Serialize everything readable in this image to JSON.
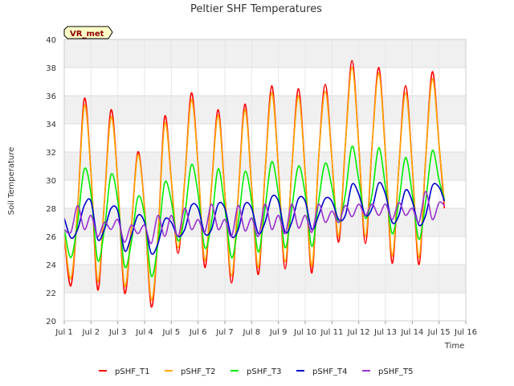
{
  "chart_data": {
    "type": "line",
    "title": "Peltier SHF Temperatures",
    "xlabel": "Time",
    "ylabel": "Soil Temperature",
    "badge": "VR_met",
    "xlim": [
      1,
      16
    ],
    "ylim": [
      20,
      40
    ],
    "x_ticks": [
      {
        "value": 1,
        "label": "Jul 1"
      },
      {
        "value": 2,
        "label": "Jul 2"
      },
      {
        "value": 3,
        "label": "Jul 3"
      },
      {
        "value": 4,
        "label": "Jul 4"
      },
      {
        "value": 5,
        "label": "Jul 5"
      },
      {
        "value": 6,
        "label": "Jul 6"
      },
      {
        "value": 7,
        "label": "Jul 7"
      },
      {
        "value": 8,
        "label": "Jul 8"
      },
      {
        "value": 9,
        "label": "Jul 9"
      },
      {
        "value": 10,
        "label": "Jul 10"
      },
      {
        "value": 11,
        "label": "Jul 11"
      },
      {
        "value": 12,
        "label": "Jul 12"
      },
      {
        "value": 13,
        "label": "Jul 13"
      },
      {
        "value": 14,
        "label": "Jul 14"
      },
      {
        "value": 15,
        "label": "Jul 15"
      },
      {
        "value": 16,
        "label": "Jul 16"
      }
    ],
    "y_ticks": [
      20,
      22,
      24,
      26,
      28,
      30,
      32,
      34,
      36,
      38,
      40
    ],
    "grid": true,
    "legend_position": "bottom",
    "series": [
      {
        "name": "pSHF_T1",
        "color": "#ff0000",
        "x": [
          1.0,
          1.25,
          1.5,
          1.75,
          2.0,
          2.25,
          2.5,
          2.75,
          3.0,
          3.25,
          3.5,
          3.75,
          4.0,
          4.25,
          4.5,
          4.75,
          5.0,
          5.25,
          5.5,
          5.75,
          6.0,
          6.25,
          6.5,
          6.75,
          7.0,
          7.25,
          7.5,
          7.75,
          8.0,
          8.25,
          8.5,
          8.75,
          9.0,
          9.25,
          9.5,
          9.75,
          10.0,
          10.25,
          10.5,
          10.75,
          11.0,
          11.25,
          11.5,
          11.75,
          12.0,
          12.25,
          12.5,
          12.75,
          13.0,
          13.25,
          13.5,
          13.75,
          14.0,
          14.25,
          14.5,
          14.75,
          15.0,
          15.2
        ],
        "y": [
          26.0,
          22.5,
          28.0,
          35.8,
          30.5,
          22.2,
          28.5,
          35.0,
          29.8,
          22.0,
          26.5,
          32.0,
          28.0,
          21.0,
          26.0,
          34.5,
          30.0,
          24.8,
          30.0,
          36.2,
          31.0,
          23.8,
          29.5,
          35.0,
          29.0,
          22.7,
          29.0,
          35.4,
          29.5,
          23.3,
          30.5,
          36.7,
          30.8,
          23.7,
          30.8,
          36.5,
          30.5,
          23.4,
          31.5,
          36.8,
          31.5,
          25.6,
          32.5,
          38.5,
          32.5,
          25.5,
          32.5,
          38.0,
          31.8,
          24.1,
          31.0,
          36.7,
          31.0,
          24.0,
          31.5,
          37.7,
          32.5,
          28.0
        ]
      },
      {
        "name": "pSHF_T2",
        "color": "#ffa500",
        "x": [
          1.0,
          1.25,
          1.5,
          1.75,
          2.0,
          2.25,
          2.5,
          2.75,
          3.0,
          3.25,
          3.5,
          3.75,
          4.0,
          4.25,
          4.5,
          4.75,
          5.0,
          5.25,
          5.5,
          5.75,
          6.0,
          6.25,
          6.5,
          6.75,
          7.0,
          7.25,
          7.5,
          7.75,
          8.0,
          8.25,
          8.5,
          8.75,
          9.0,
          9.25,
          9.5,
          9.75,
          10.0,
          10.25,
          10.5,
          10.75,
          11.0,
          11.25,
          11.5,
          11.75,
          12.0,
          12.25,
          12.5,
          12.75,
          13.0,
          13.25,
          13.5,
          13.75,
          14.0,
          14.25,
          14.5,
          14.75,
          15.0,
          15.2
        ],
        "y": [
          26.2,
          23.0,
          28.0,
          35.3,
          30.5,
          22.8,
          28.5,
          34.5,
          29.8,
          22.5,
          26.5,
          31.8,
          28.0,
          21.5,
          26.0,
          34.0,
          30.0,
          25.2,
          30.0,
          35.7,
          31.0,
          24.3,
          29.5,
          34.6,
          29.0,
          23.2,
          29.0,
          35.0,
          29.5,
          23.8,
          30.5,
          36.2,
          30.8,
          24.2,
          30.8,
          36.0,
          30.5,
          23.9,
          31.5,
          36.3,
          31.5,
          26.0,
          32.5,
          38.0,
          32.5,
          26.0,
          32.5,
          37.6,
          31.8,
          24.6,
          31.0,
          36.2,
          31.0,
          24.5,
          31.5,
          37.2,
          32.5,
          28.4
        ]
      },
      {
        "name": "pSHF_T3",
        "color": "#00ee00",
        "x": [
          1.0,
          1.25,
          1.5,
          1.75,
          2.0,
          2.25,
          2.5,
          2.75,
          3.0,
          3.25,
          3.5,
          3.75,
          4.0,
          4.25,
          4.5,
          4.75,
          5.0,
          5.25,
          5.5,
          5.75,
          6.0,
          6.25,
          6.5,
          6.75,
          7.0,
          7.25,
          7.5,
          7.75,
          8.0,
          8.25,
          8.5,
          8.75,
          9.0,
          9.25,
          9.5,
          9.75,
          10.0,
          10.25,
          10.5,
          10.75,
          11.0,
          11.25,
          11.5,
          11.75,
          12.0,
          12.25,
          12.5,
          12.75,
          13.0,
          13.25,
          13.5,
          13.75,
          14.0,
          14.25,
          14.5,
          14.75,
          15.0,
          15.2
        ],
        "y": [
          26.5,
          24.5,
          27.0,
          30.8,
          29.0,
          24.3,
          26.5,
          30.4,
          28.5,
          23.9,
          25.5,
          28.8,
          27.5,
          23.2,
          25.5,
          29.8,
          28.5,
          25.7,
          27.5,
          31.1,
          29.0,
          25.2,
          27.0,
          30.8,
          28.0,
          24.5,
          27.0,
          30.6,
          28.5,
          24.9,
          28.0,
          31.3,
          29.0,
          25.2,
          28.0,
          31.0,
          29.0,
          25.3,
          28.5,
          31.2,
          29.5,
          27.0,
          29.0,
          32.4,
          30.0,
          27.3,
          29.0,
          32.3,
          29.5,
          26.2,
          28.5,
          31.6,
          29.0,
          25.8,
          28.5,
          32.1,
          30.0,
          28.6
        ]
      },
      {
        "name": "pSHF_T4",
        "color": "#0000cc",
        "x": [
          1.0,
          1.25,
          1.5,
          1.75,
          2.0,
          2.25,
          2.5,
          2.75,
          3.0,
          3.25,
          3.5,
          3.75,
          4.0,
          4.25,
          4.5,
          4.75,
          5.0,
          5.25,
          5.5,
          5.75,
          6.0,
          6.25,
          6.5,
          6.75,
          7.0,
          7.25,
          7.5,
          7.75,
          8.0,
          8.25,
          8.5,
          8.75,
          9.0,
          9.25,
          9.5,
          9.75,
          10.0,
          10.25,
          10.5,
          10.75,
          11.0,
          11.25,
          11.5,
          11.75,
          12.0,
          12.25,
          12.5,
          12.75,
          13.0,
          13.25,
          13.5,
          13.75,
          14.0,
          14.25,
          14.5,
          14.75,
          15.0,
          15.2
        ],
        "y": [
          27.3,
          25.9,
          26.5,
          28.2,
          28.5,
          25.8,
          26.5,
          28.0,
          27.8,
          25.0,
          26.0,
          27.5,
          27.0,
          24.8,
          25.5,
          27.2,
          27.0,
          26.0,
          26.5,
          28.2,
          28.0,
          26.2,
          26.5,
          28.3,
          28.0,
          26.0,
          26.5,
          28.3,
          28.0,
          26.2,
          27.0,
          28.8,
          28.5,
          26.3,
          27.0,
          28.7,
          28.5,
          26.5,
          27.5,
          28.7,
          28.5,
          27.2,
          27.5,
          29.7,
          29.0,
          27.5,
          28.0,
          29.8,
          29.0,
          27.0,
          27.5,
          29.3,
          28.5,
          26.8,
          27.5,
          29.6,
          29.5,
          28.5
        ]
      },
      {
        "name": "pSHF_T5",
        "color": "#9932cc",
        "x": [
          1.0,
          1.25,
          1.5,
          1.75,
          2.0,
          2.25,
          2.5,
          2.75,
          3.0,
          3.25,
          3.5,
          3.75,
          4.0,
          4.25,
          4.5,
          4.75,
          5.0,
          5.25,
          5.5,
          5.75,
          6.0,
          6.25,
          6.5,
          6.75,
          7.0,
          7.25,
          7.5,
          7.75,
          8.0,
          8.25,
          8.5,
          8.75,
          9.0,
          9.25,
          9.5,
          9.75,
          10.0,
          10.25,
          10.5,
          10.75,
          11.0,
          11.25,
          11.5,
          11.75,
          12.0,
          12.25,
          12.5,
          12.75,
          13.0,
          13.25,
          13.5,
          13.75,
          14.0,
          14.25,
          14.5,
          14.75,
          15.0,
          15.2
        ],
        "y": [
          26.5,
          26.3,
          28.2,
          26.5,
          27.5,
          26.0,
          27.0,
          26.5,
          27.2,
          25.6,
          26.8,
          26.2,
          26.8,
          25.5,
          27.5,
          26.0,
          27.5,
          26.0,
          28.0,
          26.5,
          27.2,
          26.3,
          28.3,
          26.5,
          27.2,
          26.0,
          28.2,
          26.4,
          27.3,
          26.0,
          28.3,
          26.5,
          27.5,
          26.2,
          28.3,
          26.6,
          27.5,
          26.3,
          28.3,
          27.0,
          27.8,
          27.0,
          28.2,
          27.4,
          28.3,
          27.5,
          28.3,
          27.5,
          28.3,
          27.2,
          28.4,
          27.5,
          28.0,
          27.0,
          29.2,
          27.2,
          28.4,
          28.2
        ]
      }
    ]
  }
}
